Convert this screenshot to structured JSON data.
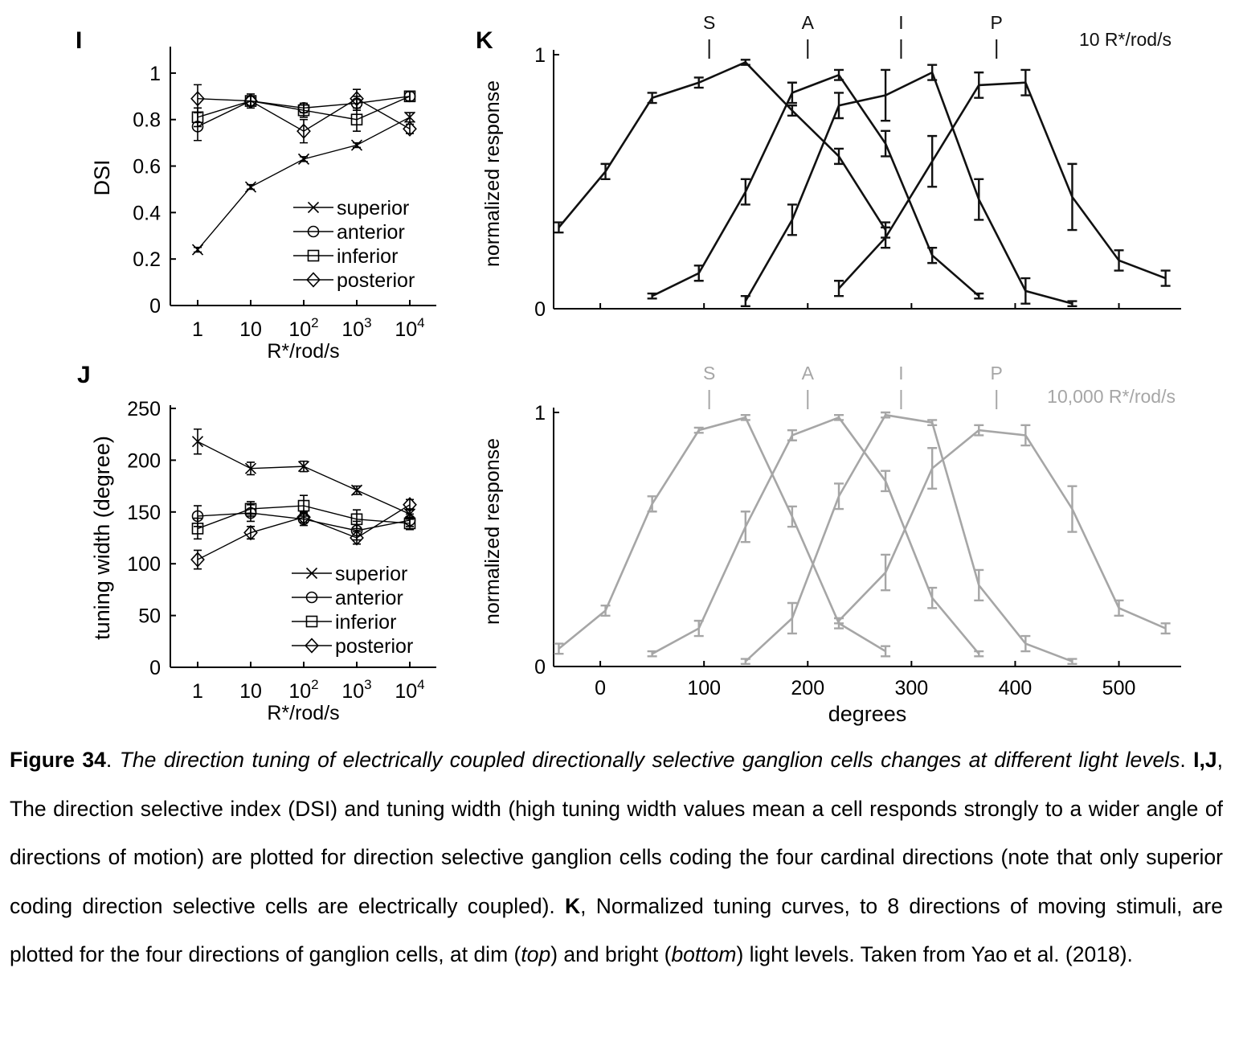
{
  "panels": {
    "I": {
      "letter": "I"
    },
    "J": {
      "letter": "J"
    },
    "K": {
      "letter": "K"
    }
  },
  "chart_data": [
    {
      "id": "I",
      "type": "line",
      "title": "",
      "xlabel": "R*/rod/s",
      "ylabel": "DSI",
      "x_scale": "log",
      "x": [
        1,
        10,
        100,
        1000,
        10000
      ],
      "xtick_labels": [
        "1",
        "10",
        "10^2",
        "10^3",
        "10^4"
      ],
      "ylim": [
        0,
        1.1
      ],
      "yticks": [
        0,
        0.2,
        0.4,
        0.6,
        0.8,
        1
      ],
      "ytick_labels": [
        "0",
        "0.2",
        "0.4",
        "0.6",
        "0.8",
        "1"
      ],
      "legend": "center-right",
      "series": [
        {
          "name": "superior",
          "marker": "x",
          "values": [
            0.24,
            0.51,
            0.63,
            0.69,
            0.81
          ],
          "err": [
            0.01,
            0.01,
            0.01,
            0.01,
            0.02
          ]
        },
        {
          "name": "anterior",
          "marker": "o",
          "values": [
            0.77,
            0.88,
            0.85,
            0.87,
            0.9
          ],
          "err": [
            0.06,
            0.02,
            0.02,
            0.03,
            0.02
          ]
        },
        {
          "name": "inferior",
          "marker": "s",
          "values": [
            0.81,
            0.88,
            0.84,
            0.8,
            0.9
          ],
          "err": [
            0.04,
            0.03,
            0.03,
            0.05,
            0.02
          ]
        },
        {
          "name": "posterior",
          "marker": "d",
          "values": [
            0.89,
            0.88,
            0.75,
            0.89,
            0.76
          ],
          "err": [
            0.06,
            0.02,
            0.05,
            0.04,
            0.02
          ]
        }
      ]
    },
    {
      "id": "J",
      "type": "line",
      "title": "",
      "xlabel": "R*/rod/s",
      "ylabel": "tuning width (degree)",
      "x_scale": "log",
      "x": [
        1,
        10,
        100,
        1000,
        10000
      ],
      "xtick_labels": [
        "1",
        "10",
        "10^2",
        "10^3",
        "10^4"
      ],
      "ylim": [
        0,
        250
      ],
      "yticks": [
        0,
        50,
        100,
        150,
        200,
        250
      ],
      "ytick_labels": [
        "0",
        "50",
        "100",
        "150",
        "200",
        "250"
      ],
      "legend": "bottom-right",
      "series": [
        {
          "name": "superior",
          "marker": "x",
          "values": [
            218,
            192,
            194,
            171,
            148
          ],
          "err": [
            12,
            6,
            5,
            4,
            5
          ]
        },
        {
          "name": "anterior",
          "marker": "o",
          "values": [
            146,
            149,
            143,
            132,
            142
          ],
          "err": [
            10,
            8,
            6,
            9,
            6
          ]
        },
        {
          "name": "inferior",
          "marker": "s",
          "values": [
            134,
            153,
            156,
            143,
            139
          ],
          "err": [
            10,
            7,
            10,
            9,
            6
          ]
        },
        {
          "name": "posterior",
          "marker": "d",
          "values": [
            104,
            130,
            145,
            125,
            157
          ],
          "err": [
            9,
            6,
            5,
            6,
            5
          ]
        }
      ]
    },
    {
      "id": "K-top",
      "type": "line",
      "title": "10 R*/rod/s",
      "xlabel": "",
      "ylabel": "normalized response",
      "xlim": [
        -45,
        560
      ],
      "ylim": [
        0,
        1
      ],
      "yticks": [
        0,
        1
      ],
      "ytick_labels": [
        "0",
        "1"
      ],
      "xticks": [
        0,
        100,
        200,
        300,
        400,
        500
      ],
      "markers": [
        {
          "label": "S",
          "x": 105
        },
        {
          "label": "A",
          "x": 200
        },
        {
          "label": "I",
          "x": 290
        },
        {
          "label": "P",
          "x": 382
        }
      ],
      "color": "#111111",
      "series": [
        {
          "x": [
            -40,
            5,
            50,
            95,
            140,
            185,
            230,
            275
          ],
          "values": [
            0.32,
            0.54,
            0.83,
            0.89,
            0.97,
            0.78,
            0.6,
            0.31
          ],
          "err": [
            0.02,
            0.03,
            0.02,
            0.02,
            0.01,
            0.02,
            0.03,
            0.03
          ]
        },
        {
          "x": [
            50,
            95,
            140,
            185,
            230,
            275,
            320,
            365
          ],
          "values": [
            0.05,
            0.14,
            0.46,
            0.85,
            0.92,
            0.65,
            0.21,
            0.05
          ],
          "err": [
            0.01,
            0.03,
            0.05,
            0.04,
            0.02,
            0.05,
            0.03,
            0.01
          ]
        },
        {
          "x": [
            140,
            185,
            230,
            275,
            320,
            365,
            410,
            455
          ],
          "values": [
            0.03,
            0.35,
            0.8,
            0.84,
            0.93,
            0.43,
            0.07,
            0.02
          ],
          "err": [
            0.02,
            0.06,
            0.05,
            0.1,
            0.03,
            0.08,
            0.05,
            0.01
          ]
        },
        {
          "x": [
            230,
            275,
            320,
            365,
            410,
            455,
            500,
            545
          ],
          "values": [
            0.08,
            0.28,
            0.58,
            0.88,
            0.89,
            0.44,
            0.19,
            0.12
          ],
          "err": [
            0.03,
            0.04,
            0.1,
            0.05,
            0.05,
            0.13,
            0.04,
            0.03
          ]
        }
      ]
    },
    {
      "id": "K-bottom",
      "type": "line",
      "title": "10,000 R*/rod/s",
      "xlabel": "degrees",
      "ylabel": "normalized response",
      "xlim": [
        -45,
        560
      ],
      "ylim": [
        0,
        1
      ],
      "yticks": [
        0,
        1
      ],
      "ytick_labels": [
        "0",
        "1"
      ],
      "xticks": [
        0,
        100,
        200,
        300,
        400,
        500
      ],
      "xtick_labels": [
        "0",
        "100",
        "200",
        "300",
        "400",
        "500"
      ],
      "markers": [
        {
          "label": "S",
          "x": 105
        },
        {
          "label": "A",
          "x": 200
        },
        {
          "label": "I",
          "x": 290
        },
        {
          "label": "P",
          "x": 382
        }
      ],
      "color": "#a6a6a6",
      "series": [
        {
          "x": [
            -40,
            5,
            50,
            95,
            140,
            185,
            230,
            275
          ],
          "values": [
            0.07,
            0.22,
            0.64,
            0.93,
            0.98,
            0.59,
            0.17,
            0.06
          ],
          "err": [
            0.02,
            0.02,
            0.03,
            0.01,
            0.01,
            0.04,
            0.02,
            0.02
          ]
        },
        {
          "x": [
            50,
            95,
            140,
            185,
            230,
            275,
            320,
            365
          ],
          "values": [
            0.05,
            0.15,
            0.55,
            0.91,
            0.98,
            0.73,
            0.27,
            0.05
          ],
          "err": [
            0.01,
            0.03,
            0.06,
            0.02,
            0.01,
            0.04,
            0.04,
            0.01
          ]
        },
        {
          "x": [
            140,
            185,
            230,
            275,
            320,
            365,
            410,
            455
          ],
          "values": [
            0.02,
            0.19,
            0.67,
            0.99,
            0.96,
            0.32,
            0.09,
            0.02
          ],
          "err": [
            0.01,
            0.06,
            0.05,
            0.01,
            0.01,
            0.06,
            0.03,
            0.01
          ]
        },
        {
          "x": [
            230,
            275,
            320,
            365,
            410,
            455,
            500,
            545
          ],
          "values": [
            0.18,
            0.37,
            0.78,
            0.93,
            0.91,
            0.62,
            0.23,
            0.15
          ],
          "err": [
            0.01,
            0.07,
            0.08,
            0.02,
            0.04,
            0.09,
            0.03,
            0.02
          ]
        }
      ]
    }
  ],
  "caption": {
    "label": "Figure 34",
    "sep1": ". ",
    "title": "The direction tuning of electrically coupled directionally selective ganglion cells changes at different light levels",
    "sep2": ". ",
    "ij_label": "I,J",
    "ij_text": ", The direction selective index (DSI) and tuning width (high tuning width values mean a cell responds strongly to a wider angle of directions of motion) are plotted for direction selective ganglion cells coding the four cardinal directions (note that only superior coding direction selective cells are electrically coupled).  ",
    "k_label": "K",
    "k_text_1": ", Normalized tuning curves, to 8 directions of moving stimuli, are plotted for the four directions of ganglion cells, at dim (",
    "top": "top",
    "k_text_2": ") and bright (",
    "bottom": "bottom",
    "k_text_3": ") light levels. Taken from Yao et al. (2018)."
  }
}
